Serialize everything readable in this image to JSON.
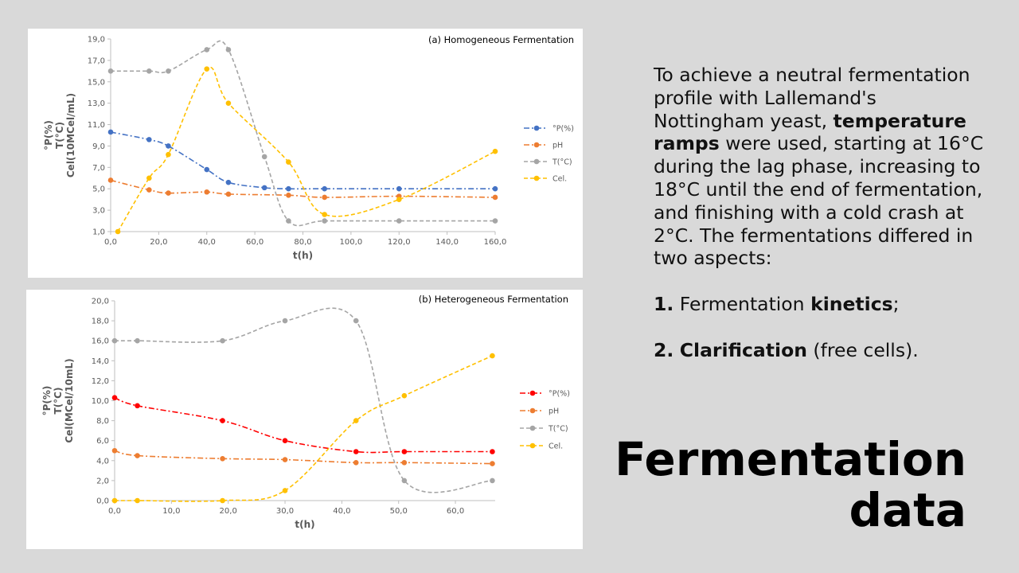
{
  "slide": {
    "title_line1": "Fermentation",
    "title_line2": "data",
    "paragraph": {
      "part1": "To achieve a neutral fermentation profile with Lallemand's Nottingham yeast, ",
      "bold": "temperature ramps",
      "part2": " were used, starting at 16°C during the lag phase, increasing to 18°C until the end of fermentation, and finishing with a cold crash at 2°C. The fermentations differed in two aspects:"
    },
    "items": [
      {
        "number": "1.",
        "text": "Fermentation ",
        "bold": "kinetics",
        "suffix": ";"
      },
      {
        "number": "2.",
        "bold": "Clarification",
        "text": " (free cells)."
      }
    ]
  },
  "chart_data": [
    {
      "type": "line",
      "title": "(a) Homogeneous Fermentation",
      "xlabel": "t(h)",
      "ylabel_lines": [
        "°P(%)",
        "T(°C)",
        "Cel(10MCel/mL)"
      ],
      "xlim": [
        0,
        160
      ],
      "ylim": [
        1,
        19
      ],
      "x_ticks": [
        0,
        20,
        40,
        60,
        80,
        100,
        120,
        140,
        160
      ],
      "x_tick_labels": [
        "0,0",
        "20,0",
        "40,0",
        "60,0",
        "80,0",
        "100,0",
        "120,0",
        "140,0",
        "160,0"
      ],
      "y_ticks": [
        1,
        3,
        5,
        7,
        9,
        11,
        13,
        15,
        17,
        19
      ],
      "y_tick_labels": [
        "1,0",
        "3,0",
        "5,0",
        "7,0",
        "9,0",
        "11,0",
        "13,0",
        "15,0",
        "17,0",
        "19,0"
      ],
      "grid": false,
      "legend": "right",
      "series": [
        {
          "name": "°P(%)",
          "color": "#4472c4",
          "dash": "7 3 2 3",
          "points": [
            [
              0,
              10.3
            ],
            [
              16,
              9.6
            ],
            [
              24,
              9.0
            ],
            [
              40,
              6.8
            ],
            [
              49,
              5.6
            ],
            [
              64,
              5.1
            ],
            [
              74,
              5.0
            ],
            [
              89,
              5.0
            ],
            [
              120,
              5.0
            ],
            [
              160,
              5.0
            ]
          ]
        },
        {
          "name": "pH",
          "color": "#ed7d31",
          "dash": "7 3 2 3",
          "points": [
            [
              0,
              5.8
            ],
            [
              16,
              4.9
            ],
            [
              24,
              4.6
            ],
            [
              40,
              4.7
            ],
            [
              49,
              4.5
            ],
            [
              74,
              4.4
            ],
            [
              89,
              4.2
            ],
            [
              120,
              4.3
            ],
            [
              160,
              4.2
            ]
          ]
        },
        {
          "name": "T(°C)",
          "color": "#a5a5a5",
          "dash": "5 3",
          "points": [
            [
              0,
              16.0
            ],
            [
              16,
              16.0
            ],
            [
              24,
              16.0
            ],
            [
              40,
              18.0
            ],
            [
              49,
              18.0
            ],
            [
              64,
              8.0
            ],
            [
              74,
              2.0
            ],
            [
              89,
              2.0
            ],
            [
              120,
              2.0
            ],
            [
              160,
              2.0
            ]
          ]
        },
        {
          "name": "Cel.",
          "color": "#ffc000",
          "dash": "5 3",
          "points": [
            [
              3,
              1.0
            ],
            [
              16,
              6.0
            ],
            [
              24,
              8.2
            ],
            [
              40,
              16.2
            ],
            [
              49,
              13.0
            ],
            [
              74,
              7.5
            ],
            [
              89,
              2.6
            ],
            [
              120,
              4.0
            ],
            [
              160,
              8.5
            ]
          ]
        }
      ]
    },
    {
      "type": "line",
      "title": "(b) Heterogeneous Fermentation",
      "xlabel": "t(h)",
      "ylabel_lines": [
        "°P(%)",
        "T(°C)",
        "Cel(MCel/10mL)"
      ],
      "xlim": [
        0,
        67
      ],
      "ylim": [
        0,
        20
      ],
      "x_ticks": [
        0,
        10,
        20,
        30,
        40,
        50,
        60
      ],
      "x_tick_labels": [
        "0,0",
        "10,0",
        "20,0",
        "30,0",
        "40,0",
        "50,0",
        "60,0"
      ],
      "y_ticks": [
        0,
        2,
        4,
        6,
        8,
        10,
        12,
        14,
        16,
        18,
        20
      ],
      "y_tick_labels": [
        "0,0",
        "2,0",
        "4,0",
        "6,0",
        "8,0",
        "10,0",
        "12,0",
        "14,0",
        "16,0",
        "18,0",
        "20,0"
      ],
      "grid": false,
      "legend": "right",
      "series": [
        {
          "name": "°P(%)",
          "color": "#ff0000",
          "dash": "7 3 2 3",
          "points": [
            [
              0,
              10.3
            ],
            [
              4,
              9.5
            ],
            [
              19,
              8.0
            ],
            [
              30,
              6.0
            ],
            [
              42.5,
              4.9
            ],
            [
              51,
              4.9
            ],
            [
              66.5,
              4.9
            ]
          ]
        },
        {
          "name": "pH",
          "color": "#ed7d31",
          "dash": "7 3 2 3",
          "points": [
            [
              0,
              5.0
            ],
            [
              4,
              4.5
            ],
            [
              19,
              4.2
            ],
            [
              30,
              4.1
            ],
            [
              42.5,
              3.8
            ],
            [
              51,
              3.8
            ],
            [
              66.5,
              3.7
            ]
          ]
        },
        {
          "name": "T(°C)",
          "color": "#a5a5a5",
          "dash": "5 3",
          "points": [
            [
              0,
              16.0
            ],
            [
              4,
              16.0
            ],
            [
              19,
              16.0
            ],
            [
              30,
              18.0
            ],
            [
              42.5,
              18.0
            ],
            [
              51,
              2.0
            ],
            [
              66.5,
              2.0
            ]
          ]
        },
        {
          "name": "Cel.",
          "color": "#ffc000",
          "dash": "5 3",
          "points": [
            [
              0,
              0.0
            ],
            [
              4,
              0.0
            ],
            [
              19,
              0.0
            ],
            [
              30,
              1.0
            ],
            [
              42.5,
              8.0
            ],
            [
              51,
              10.5
            ],
            [
              66.5,
              14.5
            ]
          ]
        }
      ]
    }
  ]
}
